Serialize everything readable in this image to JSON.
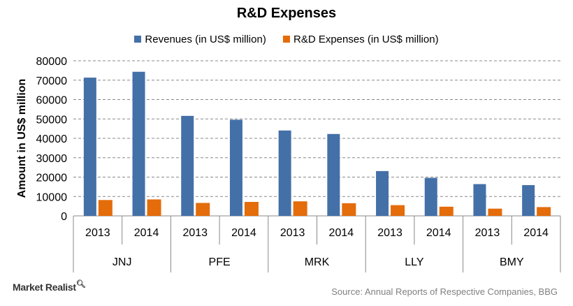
{
  "chart_data": {
    "type": "bar",
    "title": "R&D Expenses",
    "ylabel": "Amount in US$ million",
    "xlabel": "",
    "ylim": [
      0,
      80000
    ],
    "yticks": [
      0,
      10000,
      20000,
      30000,
      40000,
      50000,
      60000,
      70000,
      80000
    ],
    "grid": true,
    "legend_position": "top",
    "groups": [
      "JNJ",
      "PFE",
      "MRK",
      "LLY",
      "BMY"
    ],
    "categories": [
      "2013",
      "2014",
      "2013",
      "2014",
      "2013",
      "2014",
      "2013",
      "2014",
      "2013",
      "2014"
    ],
    "series": [
      {
        "name": "Revenues (in US$ million)",
        "color": "#4470A8",
        "values": [
          71312,
          74331,
          51584,
          49605,
          44033,
          42237,
          23113,
          19616,
          16385,
          15879
        ]
      },
      {
        "name": "R&D Expenses (in US$ million)",
        "color": "#E46C0A",
        "values": [
          8183,
          8494,
          6678,
          7203,
          7503,
          6533,
          5531,
          4734,
          3731,
          4534
        ]
      }
    ]
  },
  "footer": {
    "brand": "Market Realist",
    "source": "Source: Annual Reports of Respective Companies, BBG"
  }
}
